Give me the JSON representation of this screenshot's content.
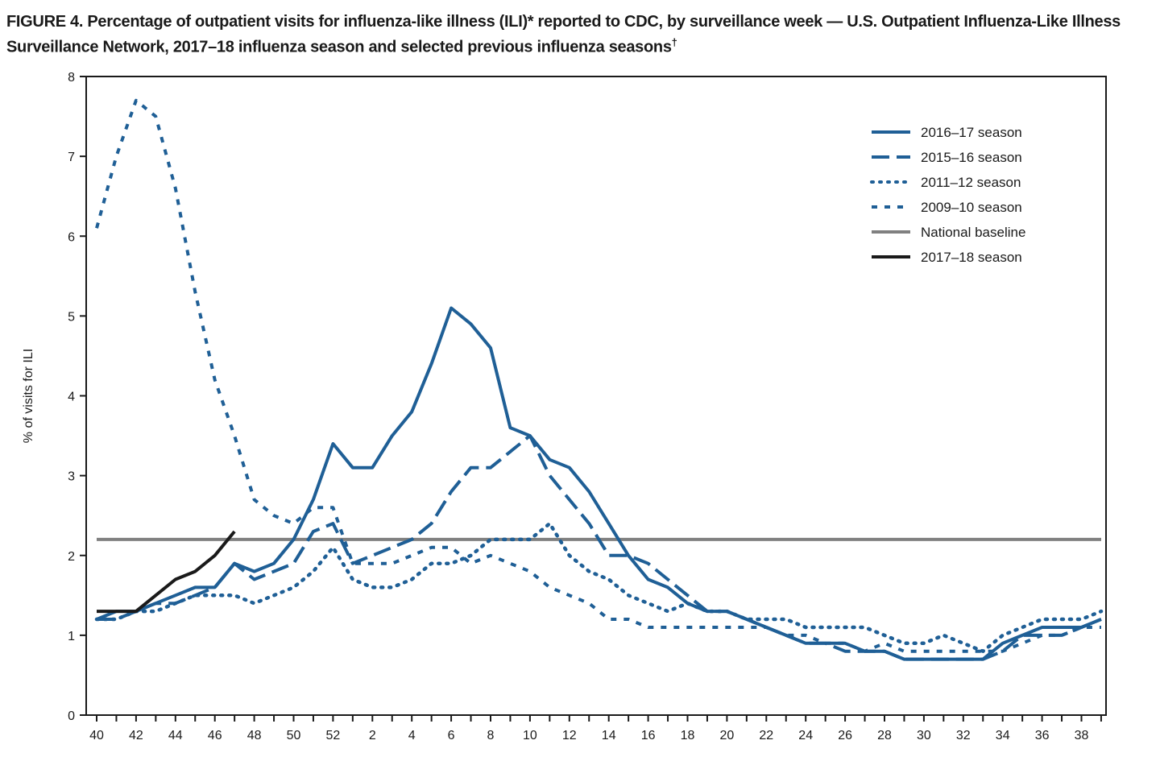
{
  "figure": {
    "title": "FIGURE 4. Percentage of outpatient visits for influenza-like illness (ILI)* reported to CDC, by surveillance week — U.S. Outpatient Influenza-Like Illness Surveillance Network, 2017–18 influenza season and selected previous influenza seasons",
    "title_mark": "†"
  },
  "chart_data": {
    "type": "line",
    "ylabel": "% of visits for ILI",
    "xlabel": "",
    "ylim": [
      0,
      8
    ],
    "y_ticks": [
      "0",
      "1",
      "2",
      "3",
      "4",
      "5",
      "6",
      "7",
      "8"
    ],
    "x_tick_labels": [
      "40",
      "42",
      "44",
      "46",
      "48",
      "50",
      "52",
      "2",
      "4",
      "6",
      "8",
      "10",
      "12",
      "14",
      "16",
      "18",
      "20",
      "22",
      "24",
      "26",
      "28",
      "30",
      "32",
      "34",
      "36",
      "38"
    ],
    "weeks": [
      "40",
      "41",
      "42",
      "43",
      "44",
      "45",
      "46",
      "47",
      "48",
      "49",
      "50",
      "51",
      "52",
      "1",
      "2",
      "3",
      "4",
      "5",
      "6",
      "7",
      "8",
      "9",
      "10",
      "11",
      "12",
      "13",
      "14",
      "15",
      "16",
      "17",
      "18",
      "19",
      "20",
      "21",
      "22",
      "23",
      "24",
      "25",
      "26",
      "27",
      "28",
      "29",
      "30",
      "31",
      "32",
      "33",
      "34",
      "35",
      "36",
      "37",
      "38",
      "39"
    ],
    "grid": false,
    "legend_position": "top-right",
    "series": [
      {
        "name": "2016–17 season",
        "color": "#1f5f96",
        "dash": "solid",
        "values": [
          1.2,
          1.3,
          1.3,
          1.4,
          1.5,
          1.6,
          1.6,
          1.9,
          1.8,
          1.9,
          2.2,
          2.7,
          3.4,
          3.1,
          3.1,
          3.5,
          3.8,
          4.4,
          5.1,
          4.9,
          4.6,
          3.6,
          3.5,
          3.2,
          3.1,
          2.8,
          2.4,
          2.0,
          1.7,
          1.6,
          1.4,
          1.3,
          1.3,
          1.2,
          1.1,
          1.0,
          0.9,
          0.9,
          0.9,
          0.8,
          0.8,
          0.7,
          0.7,
          0.7,
          0.7,
          0.7,
          0.9,
          1.0,
          1.1,
          1.1,
          1.1,
          1.2
        ]
      },
      {
        "name": "2015–16 season",
        "color": "#1f5f96",
        "dash": "long",
        "values": [
          1.2,
          1.2,
          1.3,
          1.4,
          1.4,
          1.5,
          1.6,
          1.9,
          1.7,
          1.8,
          1.9,
          2.3,
          2.4,
          1.9,
          2.0,
          2.1,
          2.2,
          2.4,
          2.8,
          3.1,
          3.1,
          3.3,
          3.5,
          3.0,
          2.7,
          2.4,
          2.0,
          2.0,
          1.9,
          1.7,
          1.5,
          1.3,
          1.3,
          1.2,
          1.1,
          1.0,
          0.9,
          0.9,
          0.8,
          0.8,
          0.8,
          0.7,
          0.7,
          0.7,
          0.7,
          0.7,
          0.8,
          1.0,
          1.0,
          1.0,
          1.1,
          1.2
        ]
      },
      {
        "name": "2011–12 season",
        "color": "#1f5f96",
        "dash": "dot",
        "values": [
          1.2,
          1.2,
          1.3,
          1.3,
          1.4,
          1.5,
          1.5,
          1.5,
          1.4,
          1.5,
          1.6,
          1.8,
          2.1,
          1.7,
          1.6,
          1.6,
          1.7,
          1.9,
          1.9,
          2.0,
          2.2,
          2.2,
          2.2,
          2.4,
          2.0,
          1.8,
          1.7,
          1.5,
          1.4,
          1.3,
          1.4,
          1.3,
          1.3,
          1.2,
          1.2,
          1.2,
          1.1,
          1.1,
          1.1,
          1.1,
          1.0,
          0.9,
          0.9,
          1.0,
          0.9,
          0.8,
          1.0,
          1.1,
          1.2,
          1.2,
          1.2,
          1.3
        ]
      },
      {
        "name": "2009–10 season",
        "color": "#1f5f96",
        "dash": "short",
        "values": [
          6.1,
          7.0,
          7.7,
          7.5,
          6.6,
          5.3,
          4.2,
          3.5,
          2.7,
          2.5,
          2.4,
          2.6,
          2.6,
          1.9,
          1.9,
          1.9,
          2.0,
          2.1,
          2.1,
          1.9,
          2.0,
          1.9,
          1.8,
          1.6,
          1.5,
          1.4,
          1.2,
          1.2,
          1.1,
          1.1,
          1.1,
          1.1,
          1.1,
          1.1,
          1.1,
          1.0,
          1.0,
          0.9,
          0.9,
          0.8,
          0.9,
          0.8,
          0.8,
          0.8,
          0.8,
          0.8,
          0.8,
          0.9,
          1.0,
          1.0,
          1.1,
          1.1
        ]
      },
      {
        "name": "National baseline",
        "color": "#808080",
        "dash": "solid",
        "constant": 2.2
      },
      {
        "name": "2017–18 season",
        "color": "#1a1a1a",
        "dash": "solid",
        "values": [
          1.3,
          1.3,
          1.3,
          1.5,
          1.7,
          1.8,
          2.0,
          2.3
        ]
      }
    ]
  }
}
